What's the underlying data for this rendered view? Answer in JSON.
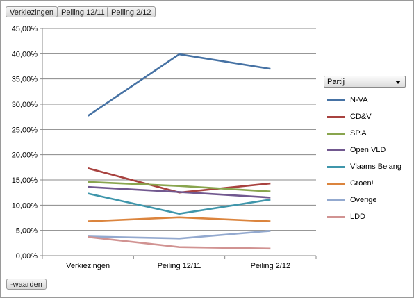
{
  "filters": [
    {
      "label": "Verkiezingen"
    },
    {
      "label": "Peiling 12/11"
    },
    {
      "label": "Peiling 2/12"
    }
  ],
  "values_button": "-waarden",
  "legend": {
    "title": "Partij"
  },
  "chart_data": {
    "type": "line",
    "categories": [
      "Verkiezingen",
      "Peiling 12/11",
      "Peiling 2/12"
    ],
    "ylim": [
      0,
      45
    ],
    "ytick_step": 5,
    "ytick_labels": [
      "0,00%",
      "5,00%",
      "10,00%",
      "15,00%",
      "20,00%",
      "25,00%",
      "30,00%",
      "35,00%",
      "40,00%",
      "45,00%"
    ],
    "legend_position": "right",
    "grid": true,
    "series": [
      {
        "name": "N-VA",
        "color": "#4672a4",
        "values": [
          27.7,
          39.9,
          37.0
        ]
      },
      {
        "name": "CD&V",
        "color": "#a8423f",
        "values": [
          17.3,
          12.5,
          14.3
        ]
      },
      {
        "name": "SP.A",
        "color": "#89a54e",
        "values": [
          14.6,
          13.8,
          12.7
        ]
      },
      {
        "name": "Open VLD",
        "color": "#71588f",
        "values": [
          13.6,
          12.6,
          11.5
        ]
      },
      {
        "name": "Vlaams Belang",
        "color": "#3f96ab",
        "values": [
          12.3,
          8.3,
          11.1
        ]
      },
      {
        "name": "Groen!",
        "color": "#db843d",
        "values": [
          6.8,
          7.6,
          6.8
        ]
      },
      {
        "name": "Overige",
        "color": "#93a9cf",
        "values": [
          3.8,
          3.4,
          4.9
        ]
      },
      {
        "name": "LDD",
        "color": "#d19392",
        "values": [
          3.7,
          1.7,
          1.4
        ]
      }
    ]
  }
}
